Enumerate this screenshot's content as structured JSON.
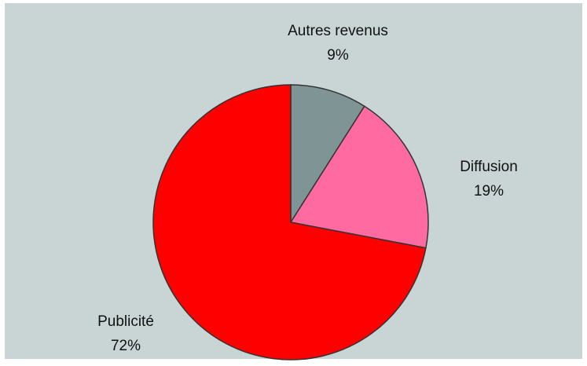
{
  "chart_data": {
    "type": "pie",
    "categories": [
      "Autres revenus",
      "Diffusion",
      "Publicité"
    ],
    "values": [
      9,
      19,
      72
    ],
    "value_labels": [
      "9%",
      "19%",
      "72%"
    ],
    "colors": [
      "#7f9595",
      "#ff6aa0",
      "#ff0000"
    ]
  }
}
